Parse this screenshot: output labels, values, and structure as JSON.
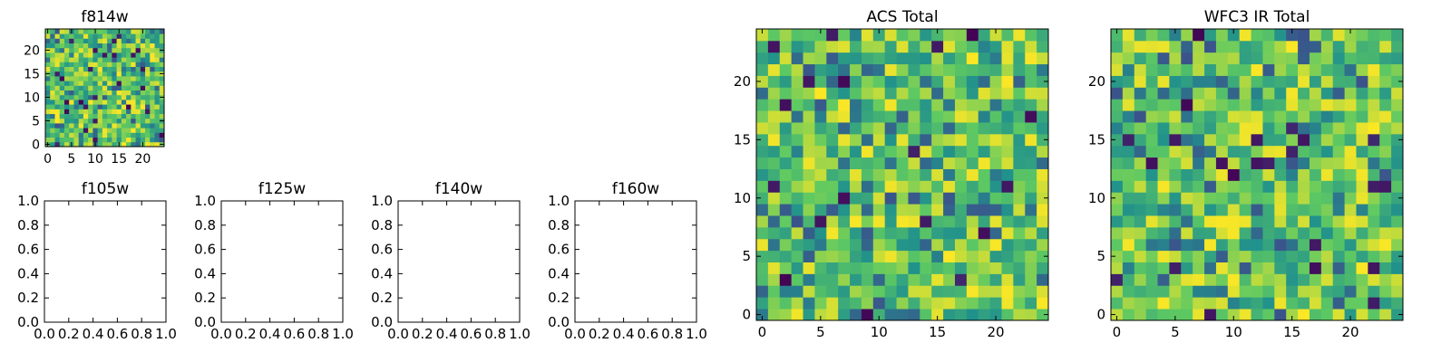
{
  "colormap": [
    "#440154",
    "#3b528b",
    "#21918c",
    "#5ec962",
    "#fde725"
  ],
  "chart_data": [
    {
      "id": "f814w",
      "type": "heatmap",
      "title": "f814w",
      "grid_size": [
        25,
        25
      ],
      "xlim": [
        -0.5,
        24.5
      ],
      "ylim": [
        -0.5,
        24.5
      ],
      "xticks": [
        0,
        5,
        10,
        15,
        20
      ],
      "yticks": [
        0,
        5,
        10,
        15,
        20
      ],
      "value_range": [
        0,
        1
      ],
      "seed": 814
    },
    {
      "id": "f105w",
      "type": "table",
      "title": "f105w",
      "xlim": [
        0,
        1
      ],
      "ylim": [
        0,
        1
      ],
      "xticks": [
        "0.0",
        "0.2",
        "0.4",
        "0.6",
        "0.8",
        "1.0"
      ],
      "yticks": [
        "0.0",
        "0.2",
        "0.4",
        "0.6",
        "0.8",
        "1.0"
      ],
      "values": []
    },
    {
      "id": "f125w",
      "type": "table",
      "title": "f125w",
      "xlim": [
        0,
        1
      ],
      "ylim": [
        0,
        1
      ],
      "xticks": [
        "0.0",
        "0.2",
        "0.4",
        "0.6",
        "0.8",
        "1.0"
      ],
      "yticks": [
        "0.0",
        "0.2",
        "0.4",
        "0.6",
        "0.8",
        "1.0"
      ],
      "values": []
    },
    {
      "id": "f140w",
      "type": "table",
      "title": "f140w",
      "xlim": [
        0,
        1
      ],
      "ylim": [
        0,
        1
      ],
      "xticks": [
        "0.0",
        "0.2",
        "0.4",
        "0.6",
        "0.8",
        "1.0"
      ],
      "yticks": [
        "0.0",
        "0.2",
        "0.4",
        "0.6",
        "0.8",
        "1.0"
      ],
      "values": []
    },
    {
      "id": "f160w",
      "type": "table",
      "title": "f160w",
      "xlim": [
        0,
        1
      ],
      "ylim": [
        0,
        1
      ],
      "xticks": [
        "0.0",
        "0.2",
        "0.4",
        "0.6",
        "0.8",
        "1.0"
      ],
      "yticks": [
        "0.0",
        "0.2",
        "0.4",
        "0.6",
        "0.8",
        "1.0"
      ],
      "values": []
    },
    {
      "id": "acs-total",
      "type": "heatmap",
      "title": "ACS Total",
      "grid_size": [
        25,
        25
      ],
      "xlim": [
        -0.5,
        24.5
      ],
      "ylim": [
        -0.5,
        24.5
      ],
      "xticks": [
        0,
        5,
        10,
        15,
        20
      ],
      "yticks": [
        0,
        5,
        10,
        15,
        20
      ],
      "value_range": [
        0,
        1
      ],
      "seed": 101
    },
    {
      "id": "wfc3-ir-total",
      "type": "heatmap",
      "title": "WFC3 IR Total",
      "grid_size": [
        25,
        25
      ],
      "xlim": [
        -0.5,
        24.5
      ],
      "ylim": [
        -0.5,
        24.5
      ],
      "xticks": [
        0,
        5,
        10,
        15,
        20
      ],
      "yticks": [
        0,
        5,
        10,
        15,
        20
      ],
      "value_range": [
        0,
        1
      ],
      "seed": 303
    }
  ]
}
